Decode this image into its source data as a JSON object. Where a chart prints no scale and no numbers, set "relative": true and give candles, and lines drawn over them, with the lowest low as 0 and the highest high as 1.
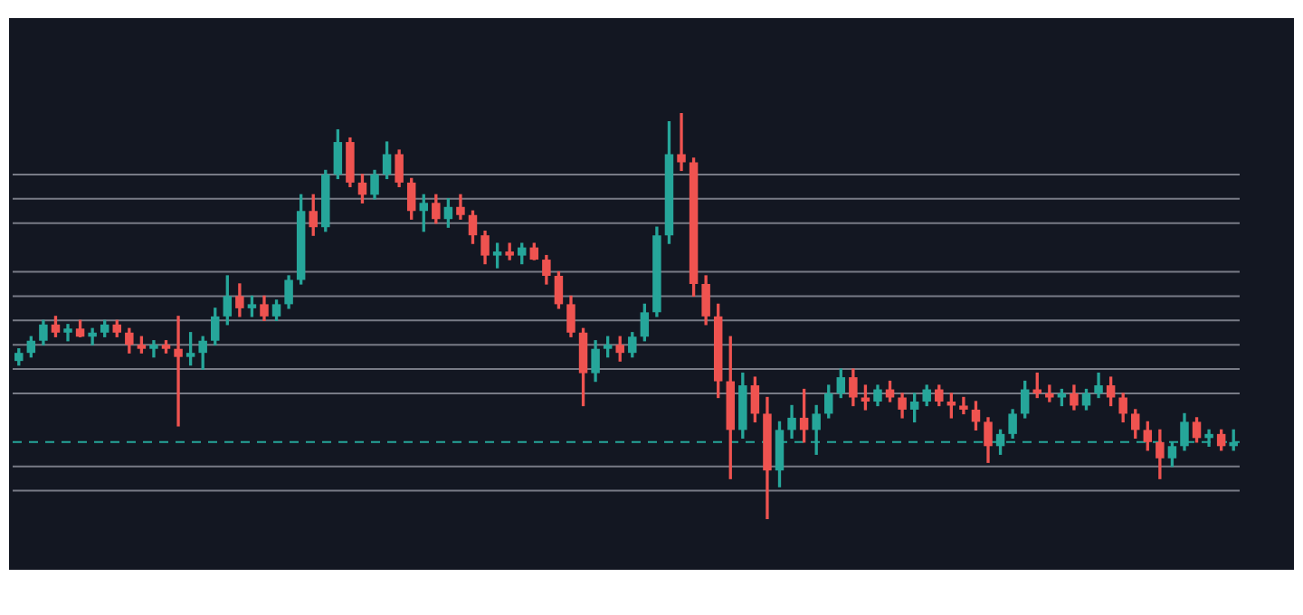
{
  "chart_data": {
    "type": "candlestick",
    "relative": true,
    "legend": false,
    "tick_labels": false,
    "grid": false,
    "categories": [
      null,
      null,
      null,
      null,
      null,
      null,
      null,
      null,
      null,
      null,
      null,
      null,
      null,
      null,
      null,
      null,
      null,
      null,
      null,
      null,
      null,
      null,
      null,
      null,
      null,
      null,
      null,
      null,
      null,
      null,
      null,
      null,
      null,
      null,
      null,
      null,
      null,
      null,
      null,
      null,
      null,
      null,
      null,
      null,
      null,
      null,
      null,
      null,
      null,
      null,
      null,
      null,
      null,
      null,
      null,
      null,
      null,
      null,
      null,
      null,
      null,
      null,
      null,
      null,
      null,
      null,
      null,
      null,
      null,
      null,
      null,
      null,
      null,
      null,
      null,
      null,
      null,
      null,
      null,
      null,
      null,
      null,
      null,
      null,
      null,
      null,
      null,
      null,
      null,
      null,
      null,
      null,
      null,
      null,
      null,
      null,
      null,
      null,
      null,
      null
    ],
    "ohlc": [
      [
        0.39,
        0.42,
        0.38,
        0.41
      ],
      [
        0.41,
        0.45,
        0.4,
        0.44
      ],
      [
        0.44,
        0.49,
        0.43,
        0.48
      ],
      [
        0.48,
        0.5,
        0.45,
        0.46
      ],
      [
        0.46,
        0.48,
        0.44,
        0.47
      ],
      [
        0.47,
        0.49,
        0.45,
        0.45
      ],
      [
        0.45,
        0.47,
        0.43,
        0.46
      ],
      [
        0.46,
        0.49,
        0.45,
        0.48
      ],
      [
        0.48,
        0.49,
        0.45,
        0.46
      ],
      [
        0.46,
        0.47,
        0.41,
        0.43
      ],
      [
        0.43,
        0.45,
        0.41,
        0.42
      ],
      [
        0.42,
        0.44,
        0.4,
        0.43
      ],
      [
        0.43,
        0.44,
        0.41,
        0.42
      ],
      [
        0.42,
        0.5,
        0.23,
        0.4
      ],
      [
        0.4,
        0.46,
        0.38,
        0.41
      ],
      [
        0.41,
        0.45,
        0.37,
        0.44
      ],
      [
        0.44,
        0.52,
        0.43,
        0.5
      ],
      [
        0.5,
        0.6,
        0.48,
        0.55
      ],
      [
        0.55,
        0.58,
        0.5,
        0.52
      ],
      [
        0.52,
        0.55,
        0.5,
        0.53
      ],
      [
        0.53,
        0.55,
        0.49,
        0.5
      ],
      [
        0.5,
        0.54,
        0.49,
        0.53
      ],
      [
        0.53,
        0.6,
        0.52,
        0.59
      ],
      [
        0.59,
        0.8,
        0.58,
        0.76
      ],
      [
        0.76,
        0.8,
        0.7,
        0.72
      ],
      [
        0.72,
        0.86,
        0.71,
        0.85
      ],
      [
        0.85,
        0.96,
        0.84,
        0.93
      ],
      [
        0.93,
        0.94,
        0.82,
        0.83
      ],
      [
        0.83,
        0.85,
        0.78,
        0.8
      ],
      [
        0.8,
        0.86,
        0.79,
        0.85
      ],
      [
        0.85,
        0.93,
        0.84,
        0.9
      ],
      [
        0.9,
        0.91,
        0.82,
        0.83
      ],
      [
        0.83,
        0.84,
        0.74,
        0.76
      ],
      [
        0.76,
        0.8,
        0.71,
        0.78
      ],
      [
        0.78,
        0.8,
        0.73,
        0.74
      ],
      [
        0.74,
        0.79,
        0.72,
        0.77
      ],
      [
        0.77,
        0.8,
        0.74,
        0.75
      ],
      [
        0.75,
        0.76,
        0.68,
        0.7
      ],
      [
        0.7,
        0.71,
        0.63,
        0.65
      ],
      [
        0.65,
        0.68,
        0.62,
        0.66
      ],
      [
        0.66,
        0.68,
        0.64,
        0.65
      ],
      [
        0.65,
        0.68,
        0.63,
        0.67
      ],
      [
        0.67,
        0.68,
        0.64,
        0.64
      ],
      [
        0.64,
        0.65,
        0.58,
        0.6
      ],
      [
        0.6,
        0.61,
        0.52,
        0.53
      ],
      [
        0.53,
        0.55,
        0.45,
        0.46
      ],
      [
        0.46,
        0.47,
        0.28,
        0.36
      ],
      [
        0.36,
        0.44,
        0.34,
        0.42
      ],
      [
        0.42,
        0.45,
        0.4,
        0.43
      ],
      [
        0.43,
        0.45,
        0.39,
        0.41
      ],
      [
        0.41,
        0.46,
        0.4,
        0.45
      ],
      [
        0.45,
        0.53,
        0.44,
        0.51
      ],
      [
        0.51,
        0.72,
        0.5,
        0.7
      ],
      [
        0.7,
        0.98,
        0.68,
        0.9
      ],
      [
        0.9,
        1.0,
        0.86,
        0.88
      ],
      [
        0.88,
        0.89,
        0.55,
        0.58
      ],
      [
        0.58,
        0.6,
        0.48,
        0.5
      ],
      [
        0.5,
        0.53,
        0.3,
        0.34
      ],
      [
        0.34,
        0.45,
        0.1,
        0.22
      ],
      [
        0.22,
        0.36,
        0.2,
        0.33
      ],
      [
        0.33,
        0.35,
        0.24,
        0.26
      ],
      [
        0.26,
        0.3,
        0.0,
        0.12
      ],
      [
        0.12,
        0.24,
        0.08,
        0.22
      ],
      [
        0.22,
        0.28,
        0.2,
        0.25
      ],
      [
        0.25,
        0.32,
        0.19,
        0.22
      ],
      [
        0.22,
        0.28,
        0.16,
        0.26
      ],
      [
        0.26,
        0.33,
        0.25,
        0.31
      ],
      [
        0.31,
        0.37,
        0.3,
        0.35
      ],
      [
        0.35,
        0.37,
        0.28,
        0.3
      ],
      [
        0.3,
        0.33,
        0.27,
        0.29
      ],
      [
        0.29,
        0.33,
        0.28,
        0.32
      ],
      [
        0.32,
        0.34,
        0.29,
        0.3
      ],
      [
        0.3,
        0.31,
        0.25,
        0.27
      ],
      [
        0.27,
        0.31,
        0.24,
        0.29
      ],
      [
        0.29,
        0.33,
        0.28,
        0.32
      ],
      [
        0.32,
        0.33,
        0.28,
        0.29
      ],
      [
        0.29,
        0.31,
        0.25,
        0.28
      ],
      [
        0.28,
        0.3,
        0.26,
        0.27
      ],
      [
        0.27,
        0.29,
        0.22,
        0.24
      ],
      [
        0.24,
        0.25,
        0.14,
        0.18
      ],
      [
        0.18,
        0.22,
        0.16,
        0.21
      ],
      [
        0.21,
        0.27,
        0.2,
        0.26
      ],
      [
        0.26,
        0.34,
        0.25,
        0.32
      ],
      [
        0.32,
        0.36,
        0.3,
        0.31
      ],
      [
        0.31,
        0.33,
        0.29,
        0.3
      ],
      [
        0.3,
        0.32,
        0.28,
        0.31
      ],
      [
        0.31,
        0.33,
        0.27,
        0.28
      ],
      [
        0.28,
        0.32,
        0.27,
        0.31
      ],
      [
        0.31,
        0.36,
        0.3,
        0.33
      ],
      [
        0.33,
        0.35,
        0.28,
        0.3
      ],
      [
        0.3,
        0.31,
        0.24,
        0.26
      ],
      [
        0.26,
        0.27,
        0.2,
        0.22
      ],
      [
        0.22,
        0.24,
        0.17,
        0.19
      ],
      [
        0.19,
        0.22,
        0.1,
        0.15
      ],
      [
        0.15,
        0.19,
        0.13,
        0.18
      ],
      [
        0.18,
        0.26,
        0.17,
        0.24
      ],
      [
        0.24,
        0.25,
        0.19,
        0.2
      ],
      [
        0.2,
        0.22,
        0.18,
        0.21
      ],
      [
        0.21,
        0.22,
        0.17,
        0.18
      ],
      [
        0.18,
        0.22,
        0.17,
        0.19
      ]
    ],
    "colors": [
      "#26a69a",
      "#26a69a",
      "#26a69a",
      "#ef5350",
      "#26a69a",
      "#ef5350",
      "#26a69a",
      "#26a69a",
      "#ef5350",
      "#ef5350",
      "#ef5350",
      "#26a69a",
      "#ef5350",
      "#ef5350",
      "#26a69a",
      "#26a69a",
      "#26a69a",
      "#26a69a",
      "#ef5350",
      "#26a69a",
      "#ef5350",
      "#26a69a",
      "#26a69a",
      "#26a69a",
      "#ef5350",
      "#26a69a",
      "#26a69a",
      "#ef5350",
      "#ef5350",
      "#26a69a",
      "#26a69a",
      "#ef5350",
      "#ef5350",
      "#26a69a",
      "#ef5350",
      "#26a69a",
      "#ef5350",
      "#ef5350",
      "#ef5350",
      "#26a69a",
      "#ef5350",
      "#26a69a",
      "#ef5350",
      "#ef5350",
      "#ef5350",
      "#ef5350",
      "#ef5350",
      "#26a69a",
      "#26a69a",
      "#ef5350",
      "#26a69a",
      "#26a69a",
      "#26a69a",
      "#26a69a",
      "#ef5350",
      "#ef5350",
      "#ef5350",
      "#ef5350",
      "#ef5350",
      "#26a69a",
      "#ef5350",
      "#ef5350",
      "#26a69a",
      "#26a69a",
      "#ef5350",
      "#26a69a",
      "#26a69a",
      "#26a69a",
      "#ef5350",
      "#ef5350",
      "#26a69a",
      "#ef5350",
      "#ef5350",
      "#26a69a",
      "#26a69a",
      "#ef5350",
      "#ef5350",
      "#ef5350",
      "#ef5350",
      "#ef5350",
      "#26a69a",
      "#26a69a",
      "#26a69a",
      "#ef5350",
      "#ef5350",
      "#26a69a",
      "#ef5350",
      "#26a69a",
      "#26a69a",
      "#ef5350",
      "#ef5350",
      "#ef5350",
      "#ef5350",
      "#ef5350",
      "#26a69a",
      "#26a69a",
      "#ef5350",
      "#26a69a",
      "#ef5350",
      "#26a69a"
    ],
    "ref_lines": [
      {
        "axis": "y",
        "value": 0.85,
        "color": "#787b86"
      },
      {
        "axis": "y",
        "value": 0.79,
        "color": "#787b86"
      },
      {
        "axis": "y",
        "value": 0.73,
        "color": "#787b86"
      },
      {
        "axis": "y",
        "value": 0.61,
        "color": "#787b86"
      },
      {
        "axis": "y",
        "value": 0.55,
        "color": "#787b86"
      },
      {
        "axis": "y",
        "value": 0.49,
        "color": "#787b86"
      },
      {
        "axis": "y",
        "value": 0.43,
        "color": "#787b86"
      },
      {
        "axis": "y",
        "value": 0.37,
        "color": "#787b86"
      },
      {
        "axis": "y",
        "value": 0.31,
        "color": "#787b86"
      },
      {
        "axis": "y",
        "value": 0.13,
        "color": "#787b86"
      },
      {
        "axis": "y",
        "value": 0.07,
        "color": "#787b86"
      },
      {
        "axis": "y",
        "value": 0.19,
        "color": "#26a69a",
        "line_style": "dashed"
      }
    ]
  }
}
